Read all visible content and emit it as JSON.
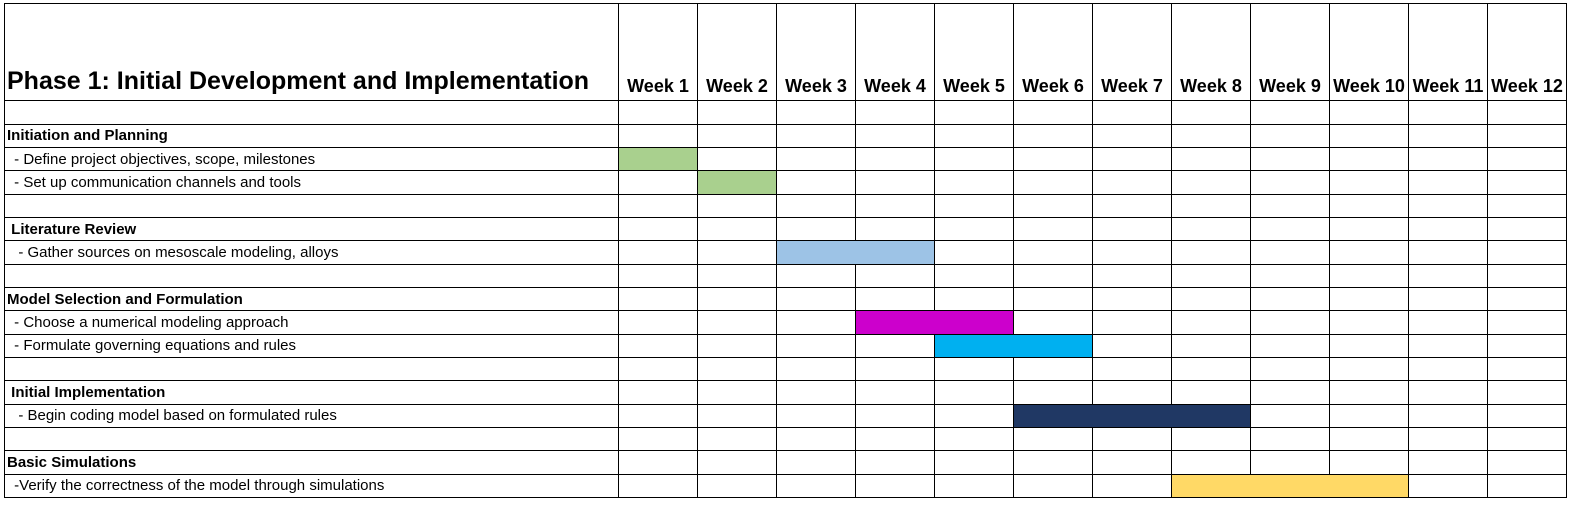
{
  "chart_data": {
    "type": "table",
    "title": "Phase 1: Initial Development and Implementation",
    "weeks": [
      "Week 1",
      "Week 2",
      "Week 3",
      "Week 4",
      "Week 5",
      "Week 6",
      "Week 7",
      "Week 8",
      "Week 9",
      "Week 10",
      "Week 11",
      "Week 12"
    ],
    "rows": [
      {
        "kind": "blank",
        "label": ""
      },
      {
        "kind": "section",
        "label": "Initiation and Planning"
      },
      {
        "kind": "task",
        "label": " - Define project objectives, scope, milestones",
        "start_week": 1,
        "end_week": 1,
        "color": "#a9d08e"
      },
      {
        "kind": "task",
        "label": " - Set up communication channels and tools",
        "start_week": 2,
        "end_week": 2,
        "color": "#a9d08e"
      },
      {
        "kind": "blank",
        "label": ""
      },
      {
        "kind": "section",
        "label": " Literature Review"
      },
      {
        "kind": "task",
        "label": "  - Gather sources on mesoscale modeling, alloys",
        "start_week": 3,
        "end_week": 4,
        "color": "#9dc3e6"
      },
      {
        "kind": "blank",
        "label": ""
      },
      {
        "kind": "section",
        "label": "Model Selection and Formulation"
      },
      {
        "kind": "task",
        "label": " - Choose a numerical modeling approach",
        "start_week": 4,
        "end_week": 5,
        "color": "#cc00cc"
      },
      {
        "kind": "task",
        "label": " - Formulate governing equations and rules",
        "start_week": 5,
        "end_week": 6,
        "color": "#00b0f0"
      },
      {
        "kind": "blank",
        "label": ""
      },
      {
        "kind": "section",
        "label": " Initial Implementation"
      },
      {
        "kind": "task",
        "label": "  - Begin coding model based on formulated rules",
        "start_week": 6,
        "end_week": 8,
        "color": "#203864"
      },
      {
        "kind": "blank",
        "label": ""
      },
      {
        "kind": "section",
        "label": "Basic Simulations"
      },
      {
        "kind": "task",
        "label": " -Verify the correctness of the model through simulations",
        "start_week": 8,
        "end_week": 10,
        "color": "#ffd966"
      }
    ]
  }
}
